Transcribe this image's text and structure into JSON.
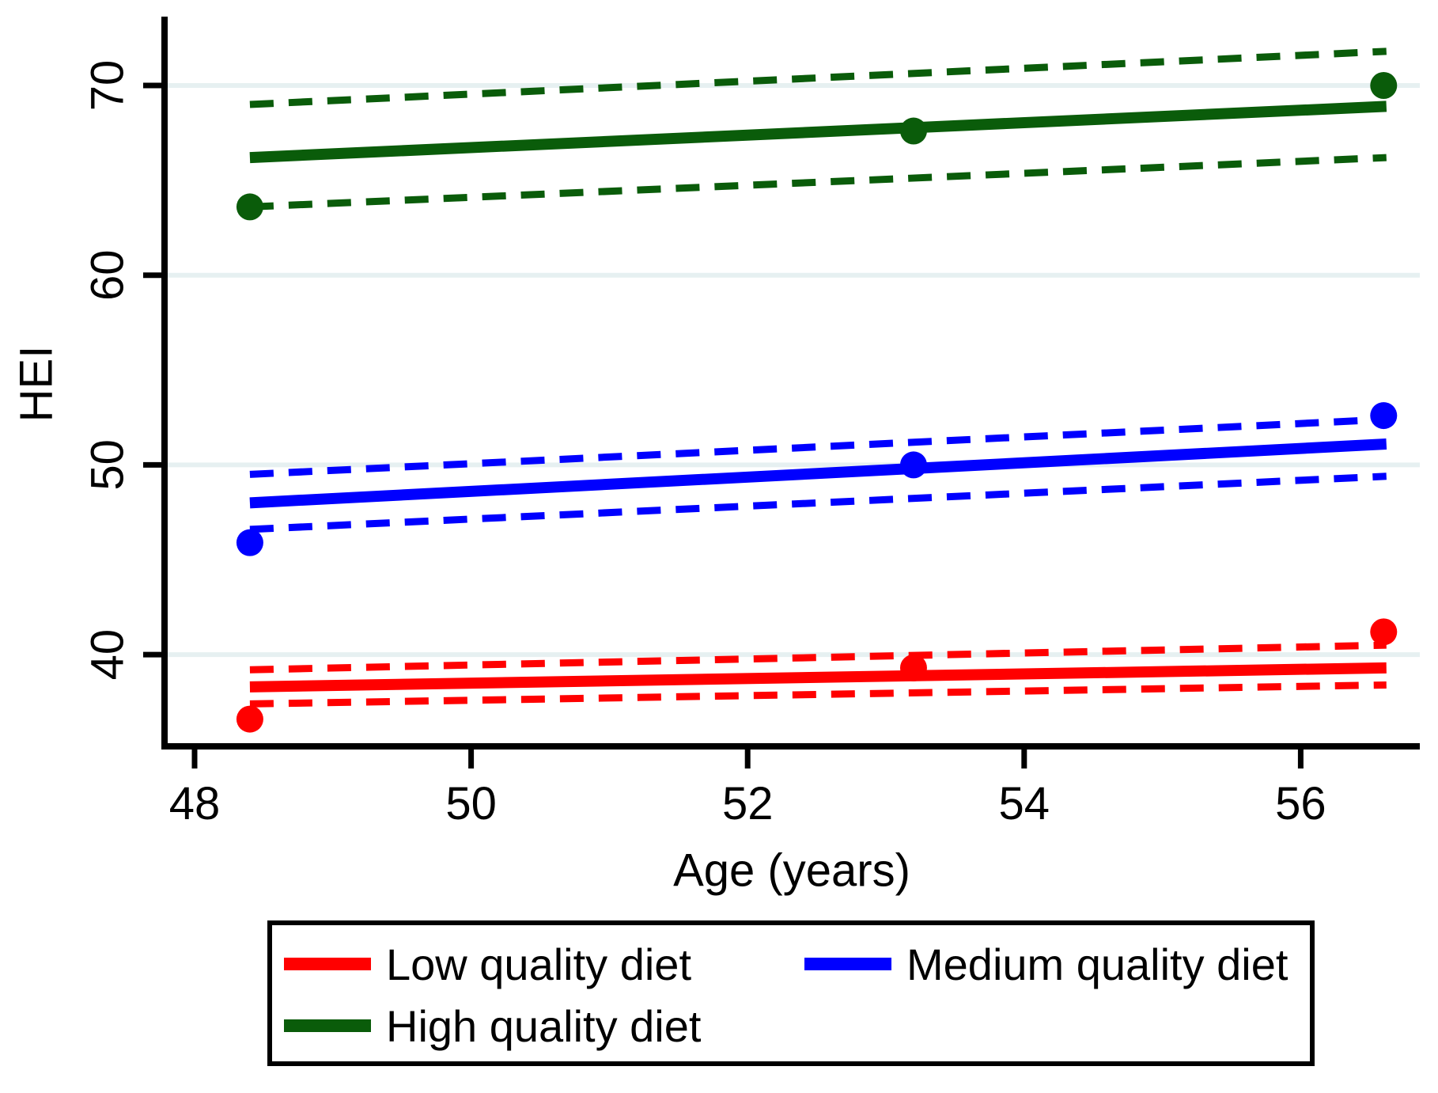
{
  "figure": {
    "x_axis_title": "Age (years)",
    "y_axis_title": "HEI"
  },
  "legend": {
    "items": [
      {
        "label": "Low quality diet",
        "color": "#FF0000"
      },
      {
        "label": "Medium quality diet",
        "color": "#0000FF"
      },
      {
        "label": "High quality diet",
        "color": "#0A5C0A"
      }
    ]
  },
  "chart_data": {
    "type": "line",
    "title": "",
    "xlabel": "Age (years)",
    "ylabel": "HEI",
    "xlim": [
      47.78,
      56.86
    ],
    "ylim": [
      35.2,
      73.5
    ],
    "x_ticks": [
      48,
      50,
      52,
      54,
      56
    ],
    "y_ticks": [
      40,
      50,
      60,
      70
    ],
    "grid": "horizontal-only",
    "gridline_color": "#E6F0F1",
    "legend_position": "below-plot",
    "series": [
      {
        "name": "Low quality diet",
        "slug": "low",
        "color": "#FF0000",
        "scatter_points": [
          [
            48.4,
            36.6
          ],
          [
            53.2,
            39.3
          ],
          [
            56.6,
            41.2
          ]
        ],
        "fit_line": [
          [
            48.4,
            38.3
          ],
          [
            56.62,
            39.3
          ]
        ],
        "ci_upper": [
          [
            48.4,
            39.2
          ],
          [
            56.62,
            40.5
          ]
        ],
        "ci_lower": [
          [
            48.4,
            37.4
          ],
          [
            56.62,
            38.4
          ]
        ]
      },
      {
        "name": "Medium quality diet",
        "slug": "medium",
        "color": "#0000FF",
        "scatter_points": [
          [
            48.4,
            45.9
          ],
          [
            53.2,
            50.0
          ],
          [
            56.6,
            52.6
          ]
        ],
        "fit_line": [
          [
            48.4,
            48.0
          ],
          [
            56.62,
            51.1
          ]
        ],
        "ci_upper": [
          [
            48.4,
            49.5
          ],
          [
            56.62,
            52.4
          ]
        ],
        "ci_lower": [
          [
            48.4,
            46.6
          ],
          [
            56.62,
            49.4
          ]
        ]
      },
      {
        "name": "High quality diet",
        "slug": "high",
        "color": "#0A5C0A",
        "scatter_points": [
          [
            48.4,
            63.6
          ],
          [
            53.2,
            67.6
          ],
          [
            56.6,
            70.0
          ]
        ],
        "fit_line": [
          [
            48.4,
            66.2
          ],
          [
            56.62,
            68.9
          ]
        ],
        "ci_upper": [
          [
            48.4,
            69.0
          ],
          [
            56.62,
            71.8
          ]
        ],
        "ci_lower": [
          [
            48.4,
            63.6
          ],
          [
            56.62,
            66.2
          ]
        ]
      }
    ]
  }
}
